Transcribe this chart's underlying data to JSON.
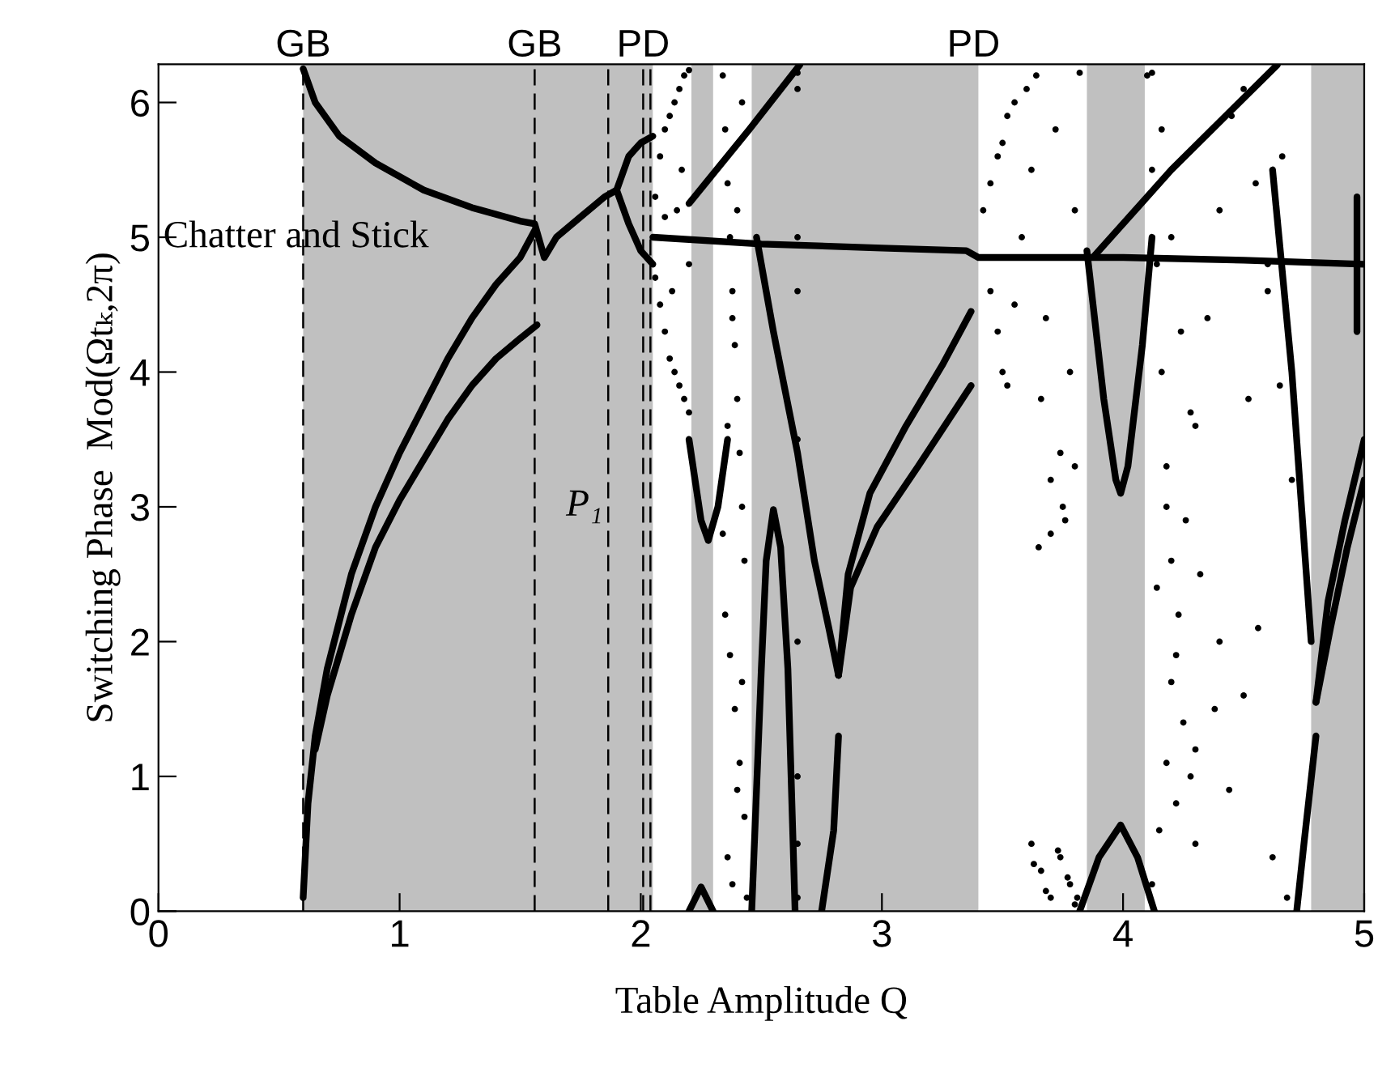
{
  "chart_data": {
    "type": "scatter",
    "xlabel": "Table Amplitude Q",
    "ylabel": "Switching Phase  Mod(Ωtₖ,2π)",
    "xlim": [
      0,
      5
    ],
    "ylim": [
      0,
      6.283
    ],
    "xticks": [
      0,
      1,
      2,
      3,
      4,
      5
    ],
    "yticks": [
      0,
      1,
      2,
      3,
      4,
      5,
      6
    ],
    "grid": false,
    "legend": false,
    "bands": [
      {
        "axis": "x",
        "from": 0.6,
        "to": 2.05,
        "color": "#c0c0c0"
      },
      {
        "axis": "x",
        "from": 2.21,
        "to": 2.3,
        "color": "#c0c0c0"
      },
      {
        "axis": "x",
        "from": 2.46,
        "to": 3.4,
        "color": "#c0c0c0"
      },
      {
        "axis": "x",
        "from": 3.85,
        "to": 4.09,
        "color": "#c0c0c0"
      },
      {
        "axis": "x",
        "from": 4.78,
        "to": 5,
        "color": "#c0c0c0"
      }
    ],
    "ref_lines": [
      {
        "axis": "x",
        "value": 0.6,
        "label": "GB",
        "color": "#000000",
        "line_style": "dashed"
      },
      {
        "axis": "x",
        "value": 1.56,
        "label": "GB",
        "color": "#000000",
        "line_style": "dashed"
      },
      {
        "axis": "x",
        "value": 1.865,
        "color": "#000000",
        "line_style": "dashed"
      },
      {
        "axis": "x",
        "value": 2.01,
        "label": "PD",
        "color": "#000000",
        "line_style": "dashed"
      },
      {
        "axis": "x",
        "value": 2.04,
        "color": "#000000",
        "line_style": "dashed"
      }
    ],
    "annotations": [
      "Chatter and Stick",
      "P₁",
      {
        "text": "PD",
        "x": 3.38,
        "y": 6.283
      }
    ],
    "series": [
      {
        "type": "line",
        "color": "#000000",
        "x": [
          0.6,
          0.65,
          0.75,
          0.9,
          1.1,
          1.3,
          1.5,
          1.56,
          1.6,
          1.65,
          1.75,
          1.85,
          1.9,
          1.95,
          2.0,
          2.05
        ],
        "values": [
          6.25,
          6.0,
          5.75,
          5.55,
          5.35,
          5.22,
          5.12,
          5.1,
          4.85,
          5.0,
          5.15,
          5.3,
          5.35,
          5.6,
          5.7,
          5.75
        ]
      },
      {
        "type": "line",
        "color": "#000000",
        "x": [
          1.9,
          1.95,
          2.0,
          2.05
        ],
        "values": [
          5.35,
          5.1,
          4.9,
          4.8
        ]
      },
      {
        "type": "line",
        "color": "#000000",
        "x": [
          0.6,
          0.62,
          0.65,
          0.7,
          0.8,
          0.9,
          1.0,
          1.1,
          1.2,
          1.3,
          1.4,
          1.5,
          1.56
        ],
        "values": [
          0.1,
          0.8,
          1.3,
          1.8,
          2.5,
          3.0,
          3.4,
          3.75,
          4.1,
          4.4,
          4.65,
          4.85,
          5.05
        ]
      },
      {
        "type": "line",
        "color": "#000000",
        "x": [
          0.65,
          0.7,
          0.8,
          0.9,
          1.0,
          1.1,
          1.2,
          1.3,
          1.4,
          1.5,
          1.57
        ],
        "values": [
          1.2,
          1.6,
          2.2,
          2.7,
          3.05,
          3.35,
          3.65,
          3.9,
          4.1,
          4.25,
          4.35
        ]
      },
      {
        "type": "line",
        "color": "#000000",
        "x": [
          2.05,
          2.5,
          3.0,
          3.35,
          3.4,
          3.7,
          4.0,
          4.5,
          5.0
        ],
        "values": [
          5.0,
          4.95,
          4.92,
          4.9,
          4.85,
          4.85,
          4.85,
          4.83,
          4.8
        ]
      },
      {
        "type": "line",
        "color": "#000000",
        "x": [
          2.2,
          2.45,
          2.66
        ],
        "values": [
          5.25,
          5.8,
          6.28
        ]
      },
      {
        "type": "line",
        "color": "#000000",
        "x": [
          3.88,
          4.2,
          4.64
        ],
        "values": [
          4.86,
          5.5,
          6.28
        ]
      },
      {
        "type": "line",
        "color": "#000000",
        "x": [
          2.2,
          2.25,
          2.28,
          2.32,
          2.36
        ],
        "values": [
          3.5,
          2.9,
          2.75,
          3.0,
          3.5
        ]
      },
      {
        "type": "line",
        "color": "#000000",
        "x": [
          2.48,
          2.55,
          2.65,
          2.72,
          2.78,
          2.82
        ],
        "values": [
          5.0,
          4.3,
          3.4,
          2.6,
          2.1,
          1.75
        ]
      },
      {
        "type": "line",
        "color": "#000000",
        "x": [
          2.82,
          2.86,
          2.95,
          3.1,
          3.25,
          3.37
        ],
        "values": [
          1.75,
          2.5,
          3.1,
          3.6,
          4.05,
          4.45
        ]
      },
      {
        "type": "line",
        "color": "#000000",
        "x": [
          2.82,
          2.87,
          2.98,
          3.15,
          3.37
        ],
        "values": [
          1.75,
          2.4,
          2.85,
          3.3,
          3.9
        ]
      },
      {
        "type": "line",
        "color": "#000000",
        "x": [
          2.46,
          2.5,
          2.52,
          2.55,
          2.58,
          2.61,
          2.64
        ],
        "values": [
          0,
          1.8,
          2.6,
          2.98,
          2.7,
          1.8,
          0
        ]
      },
      {
        "type": "line",
        "color": "#000000",
        "x": [
          2.2,
          2.25,
          2.3
        ],
        "values": [
          0,
          0.18,
          0
        ]
      },
      {
        "type": "line",
        "color": "#000000",
        "x": [
          2.82,
          2.8,
          2.75
        ],
        "values": [
          1.3,
          0.6,
          0
        ]
      },
      {
        "type": "line",
        "color": "#000000",
        "x": [
          3.85,
          3.92,
          3.97,
          3.99,
          4.02,
          4.08,
          4.12
        ],
        "values": [
          4.9,
          3.8,
          3.2,
          3.1,
          3.3,
          4.2,
          5.0
        ]
      },
      {
        "type": "line",
        "color": "#000000",
        "x": [
          3.82,
          3.9,
          3.99,
          4.06,
          4.13
        ],
        "values": [
          0,
          0.4,
          0.64,
          0.4,
          0
        ]
      },
      {
        "type": "line",
        "color": "#000000",
        "x": [
          4.8,
          4.85,
          4.92,
          5.0
        ],
        "values": [
          1.55,
          2.3,
          2.9,
          3.5
        ]
      },
      {
        "type": "line",
        "color": "#000000",
        "x": [
          4.8,
          4.86,
          4.93,
          5.0
        ],
        "values": [
          1.55,
          2.1,
          2.7,
          3.2
        ]
      },
      {
        "type": "line",
        "color": "#000000",
        "x": [
          4.8,
          4.75,
          4.72
        ],
        "values": [
          1.3,
          0.5,
          0
        ]
      },
      {
        "type": "line",
        "color": "#000000",
        "x": [
          4.62,
          4.7,
          4.78
        ],
        "values": [
          5.5,
          4.0,
          2.0
        ]
      },
      {
        "type": "line",
        "color": "#000000",
        "x": [
          4.97,
          4.97
        ],
        "values": [
          4.3,
          5.3
        ]
      },
      {
        "color": "#000000",
        "x": [
          2.06,
          2.08,
          2.1,
          2.12,
          2.14,
          2.16,
          2.18,
          2.2,
          2.06,
          2.08,
          2.1,
          2.12,
          2.14,
          2.16,
          2.18,
          2.2,
          2.1,
          2.15,
          2.2,
          2.13,
          2.17
        ],
        "values": [
          5.3,
          5.6,
          5.8,
          5.9,
          6.0,
          6.1,
          6.2,
          6.24,
          4.7,
          4.5,
          4.3,
          4.1,
          4.0,
          3.9,
          3.8,
          3.7,
          5.15,
          5.2,
          4.8,
          4.6,
          5.5
        ]
      },
      {
        "color": "#000000",
        "x": [
          2.34,
          2.35,
          2.36,
          2.37,
          2.38,
          2.39,
          2.4,
          2.41,
          2.42,
          2.43,
          2.35,
          2.37,
          2.39,
          2.41,
          2.43,
          2.36,
          2.38,
          2.4,
          2.42,
          2.34,
          2.36,
          2.38,
          2.4,
          2.42,
          2.44
        ],
        "values": [
          6.2,
          5.8,
          5.4,
          5.0,
          4.6,
          4.2,
          3.8,
          3.4,
          3.0,
          2.6,
          2.2,
          1.9,
          1.5,
          1.1,
          0.7,
          0.4,
          0.2,
          0.9,
          1.7,
          2.8,
          3.6,
          4.4,
          5.2,
          6.0,
          0.1
        ]
      },
      {
        "color": "#000000",
        "x": [
          2.65,
          2.65,
          2.65,
          2.65,
          2.65,
          2.65,
          2.65,
          2.65,
          2.65
        ],
        "values": [
          6.22,
          6.1,
          5.0,
          4.6,
          3.5,
          2.0,
          1.0,
          0.5,
          0.1
        ]
      },
      {
        "color": "#000000",
        "x": [
          3.42,
          3.45,
          3.48,
          3.5,
          3.52,
          3.55,
          3.45,
          3.48,
          3.5,
          3.52,
          3.55,
          3.58,
          3.6,
          3.62,
          3.64,
          3.66,
          3.68,
          3.7,
          3.72,
          3.74,
          3.76,
          3.78,
          3.8,
          3.82,
          3.65,
          3.7,
          3.75,
          3.8,
          3.62,
          3.66,
          3.7,
          3.74,
          3.78,
          3.8,
          3.63,
          3.68,
          3.73,
          3.77,
          3.81
        ],
        "values": [
          5.2,
          5.4,
          5.6,
          5.7,
          5.9,
          6.0,
          4.6,
          4.3,
          4.0,
          3.9,
          4.5,
          5.0,
          6.1,
          5.5,
          6.2,
          3.8,
          4.4,
          3.2,
          5.8,
          3.4,
          2.9,
          4.0,
          5.2,
          6.22,
          2.7,
          2.8,
          3.0,
          3.3,
          0.5,
          0.3,
          0.1,
          0.4,
          0.2,
          0.05,
          0.35,
          0.15,
          0.45,
          0.25,
          0.1
        ]
      },
      {
        "color": "#000000",
        "x": [
          4.1,
          4.12,
          4.14,
          4.16,
          4.18,
          4.2,
          4.22,
          4.25,
          4.28,
          4.3,
          4.12,
          4.15,
          4.18,
          4.2,
          4.23,
          4.26,
          4.3,
          4.35,
          4.4,
          4.45,
          4.5,
          4.55,
          4.6,
          4.65,
          4.7,
          4.12,
          4.16,
          4.2,
          4.24,
          4.28,
          4.32,
          4.38,
          4.44,
          4.5,
          4.56,
          4.62,
          4.68,
          4.14,
          4.18,
          4.22,
          4.3,
          4.4,
          4.52,
          4.6,
          4.66
        ],
        "values": [
          6.2,
          5.5,
          4.8,
          4.0,
          3.3,
          2.6,
          1.9,
          1.4,
          1.0,
          0.5,
          0.2,
          0.6,
          1.1,
          1.7,
          2.2,
          2.9,
          3.6,
          4.4,
          5.2,
          5.9,
          6.1,
          5.4,
          4.6,
          3.9,
          3.2,
          6.22,
          5.8,
          5.0,
          4.3,
          3.7,
          2.5,
          1.5,
          0.9,
          1.6,
          2.1,
          0.4,
          0.1,
          2.4,
          3.0,
          0.8,
          1.2,
          2.0,
          3.8,
          4.8,
          5.6
        ]
      }
    ]
  }
}
